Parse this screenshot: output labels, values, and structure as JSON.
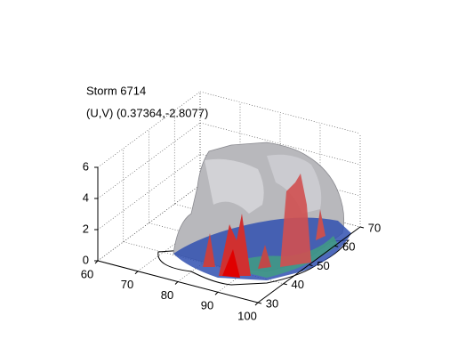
{
  "chart_data": {
    "type": "surface3d",
    "title": [
      "Storm 6714",
      "(U,V) (0.37364,-2.8077)"
    ],
    "xlim": [
      60,
      100
    ],
    "xticks": [
      60,
      70,
      80,
      90,
      100
    ],
    "ylim": [
      30,
      70
    ],
    "yticks": [
      30,
      40,
      50,
      60,
      70
    ],
    "zlim": [
      0,
      6
    ],
    "zticks": [
      0,
      2,
      4,
      6
    ],
    "grid": true
  }
}
